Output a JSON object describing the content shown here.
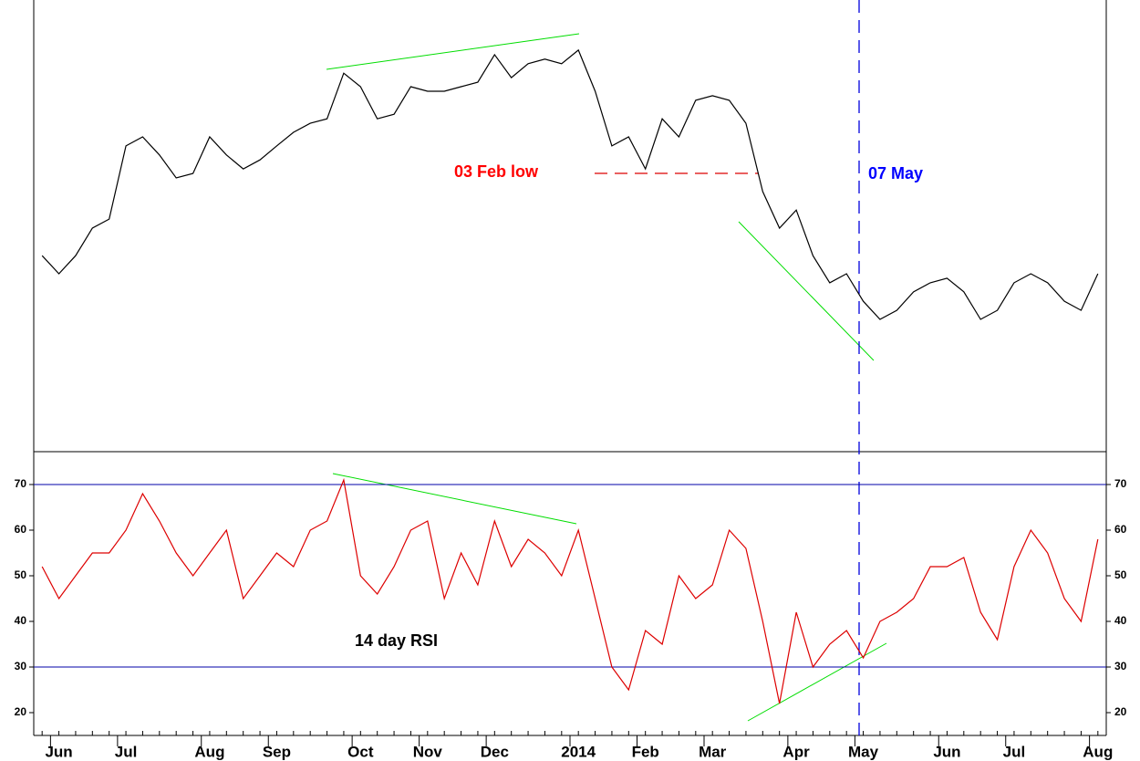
{
  "chart_data": [
    {
      "type": "line",
      "categories": [
        null,
        "Jun",
        null,
        null,
        null,
        "Jul",
        null,
        null,
        null,
        null,
        "Aug",
        null,
        null,
        null,
        "Sep",
        null,
        null,
        null,
        null,
        "Oct",
        null,
        null,
        null,
        "Nov",
        null,
        null,
        null,
        "Dec",
        null,
        null,
        null,
        null,
        "2014",
        null,
        null,
        null,
        "Feb",
        null,
        null,
        null,
        "Mar",
        null,
        null,
        null,
        null,
        "Apr",
        null,
        null,
        null,
        "May",
        null,
        null,
        null,
        null,
        "Jun",
        null,
        null,
        null,
        "Jul",
        null,
        null,
        null,
        null,
        "Aug"
      ],
      "series": [
        {
          "color": "#000000",
          "values": [
            43.4,
            39.4,
            43.4,
            49.5,
            51.5,
            67.7,
            69.7,
            65.7,
            60.6,
            61.6,
            69.7,
            65.7,
            62.6,
            64.6,
            67.7,
            70.7,
            72.7,
            73.7,
            83.8,
            80.8,
            73.7,
            74.7,
            80.8,
            79.8,
            79.8,
            80.8,
            81.8,
            87.9,
            82.8,
            85.9,
            86.9,
            85.9,
            88.9,
            79.8,
            67.7,
            69.7,
            62.6,
            73.7,
            69.7,
            77.8,
            78.8,
            77.8,
            72.7,
            57.6,
            49.5,
            53.5,
            43.4,
            37.4,
            39.4,
            33.3,
            29.3,
            31.3,
            35.4,
            37.4,
            38.4,
            35.4,
            29.3,
            31.3,
            37.4,
            39.4,
            37.4,
            33.3,
            31.3,
            39.4
          ]
        }
      ],
      "ylim": [
        0,
        100
      ],
      "annotations": [
        {
          "text": "03 Feb low",
          "color": "#ff0000"
        },
        {
          "text": "07 May",
          "color": "#0000ff"
        }
      ]
    },
    {
      "type": "line",
      "series": [
        {
          "color": "#dd0000",
          "values": [
            52,
            45,
            50,
            55,
            55,
            60,
            68,
            62,
            55,
            50,
            55,
            60,
            45,
            50,
            55,
            52,
            60,
            62,
            71,
            50,
            46,
            52,
            60,
            62,
            45,
            55,
            48,
            62,
            52,
            58,
            55,
            50,
            60,
            45,
            30,
            25,
            38,
            35,
            50,
            45,
            48,
            60,
            56,
            40,
            22,
            42,
            30,
            35,
            38,
            32,
            40,
            42,
            45,
            52,
            52,
            54,
            42,
            36,
            52,
            60,
            55,
            45,
            40,
            58
          ]
        }
      ],
      "ylim": [
        15,
        77
      ],
      "yticks": [
        20,
        30,
        40,
        50,
        60,
        70
      ],
      "hlines": [
        30,
        70
      ],
      "annotations": [
        {
          "text": "14 day RSI",
          "color": "#000000"
        }
      ]
    }
  ]
}
